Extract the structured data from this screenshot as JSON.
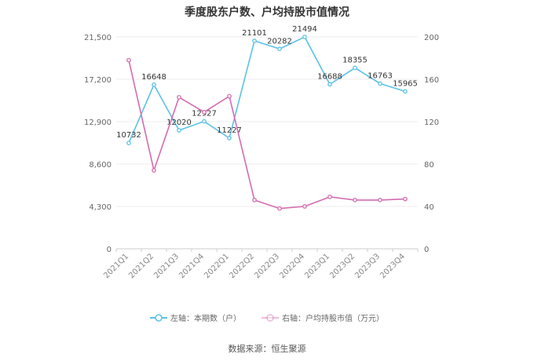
{
  "chart_data": {
    "type": "line",
    "title": "季度股东户数、户均持股市值情况",
    "categories": [
      "2021Q1",
      "2021Q2",
      "2021Q3",
      "2021Q4",
      "2022Q1",
      "2022Q2",
      "2022Q3",
      "2022Q4",
      "2023Q1",
      "2023Q2",
      "2023Q3",
      "2023Q4"
    ],
    "left_axis": {
      "ticks": [
        0,
        4300,
        8600,
        12900,
        17200,
        21500
      ],
      "tick_labels": [
        "0",
        "4,300",
        "8,600",
        "12,900",
        "17,200",
        "21,500"
      ],
      "ylim": [
        0,
        21500
      ]
    },
    "right_axis": {
      "ticks": [
        0,
        40,
        80,
        120,
        160,
        200
      ],
      "tick_labels": [
        "0",
        "40",
        "80",
        "120",
        "160",
        "200"
      ],
      "ylim": [
        0,
        200
      ]
    },
    "series": [
      {
        "name": "左轴：本期数（户）",
        "axis": "left",
        "color": "#5bc2e7",
        "values": [
          10732,
          16648,
          12020,
          12927,
          11227,
          21101,
          20282,
          21494,
          16688,
          18355,
          16763,
          15965
        ],
        "labels": [
          "10732",
          "16648",
          "12020",
          "12927",
          "11227",
          "21101",
          "20282",
          "21494",
          "16688",
          "18355",
          "16763",
          "15965"
        ]
      },
      {
        "name": "右轴：户均持股市值（万元）",
        "axis": "right",
        "color": "#d56bb0",
        "values": [
          178,
          74,
          143,
          129,
          144,
          46,
          38,
          40,
          49,
          46,
          46,
          47
        ]
      }
    ],
    "grid": true,
    "legend_position": "bottom"
  },
  "source": "数据来源：恒生聚源"
}
